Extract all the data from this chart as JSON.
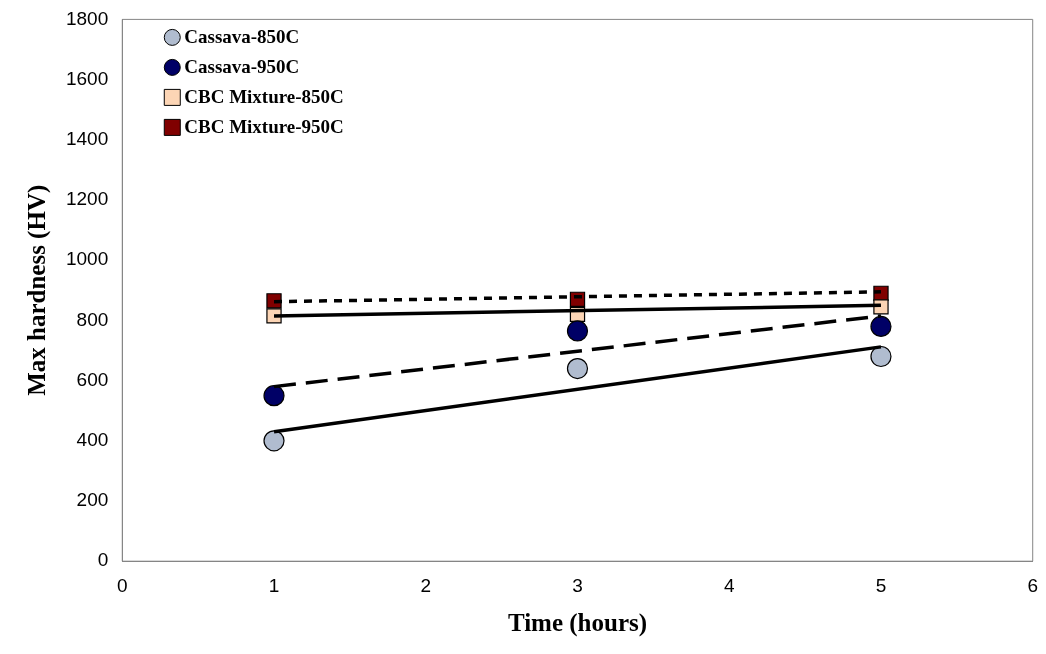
{
  "chart_data": {
    "type": "scatter",
    "xlabel": "Time (hours)",
    "ylabel": "Max hardness (HV)",
    "xlim": [
      0,
      6
    ],
    "xticks": [
      0,
      1,
      2,
      3,
      4,
      5,
      6
    ],
    "ylim": [
      0,
      1800
    ],
    "yticks": [
      0,
      200,
      400,
      600,
      800,
      1000,
      1200,
      1400,
      1600,
      1800
    ],
    "grid": false,
    "legend": "top left",
    "series": [
      {
        "name": "Cassava-850C",
        "color": "#b0bccf",
        "marker": "circle",
        "x": [
          1,
          3,
          5
        ],
        "values": [
          400,
          640,
          680
        ]
      },
      {
        "name": "Cassava-950C",
        "color": "#000066",
        "marker": "circle",
        "x": [
          1,
          3,
          5
        ],
        "values": [
          550,
          765,
          780
        ]
      },
      {
        "name": "CBC Mixture-850C",
        "color": "#fcd5b5",
        "marker": "square",
        "x": [
          1,
          3,
          5
        ],
        "values": [
          815,
          820,
          845
        ]
      },
      {
        "name": "CBC Mixture-950C",
        "color": "#800000",
        "marker": "square",
        "x": [
          1,
          3,
          5
        ],
        "values": [
          865,
          870,
          890
        ]
      },
      {
        "type": "line",
        "color": "#000000",
        "marker": "none",
        "line_style": "solid",
        "x": [
          1,
          5
        ],
        "values": [
          430,
          712
        ]
      },
      {
        "type": "line",
        "color": "#000000",
        "marker": "none",
        "line_style": "dashed",
        "x": [
          1,
          5
        ],
        "values": [
          580,
          815
        ]
      },
      {
        "type": "line",
        "color": "#000000",
        "marker": "none",
        "line_style": "solid",
        "x": [
          1,
          5
        ],
        "values": [
          815,
          850
        ]
      },
      {
        "type": "line",
        "color": "#000000",
        "marker": "none",
        "line_style": "dotted",
        "x": [
          1,
          5
        ],
        "values": [
          862,
          895
        ]
      }
    ]
  }
}
